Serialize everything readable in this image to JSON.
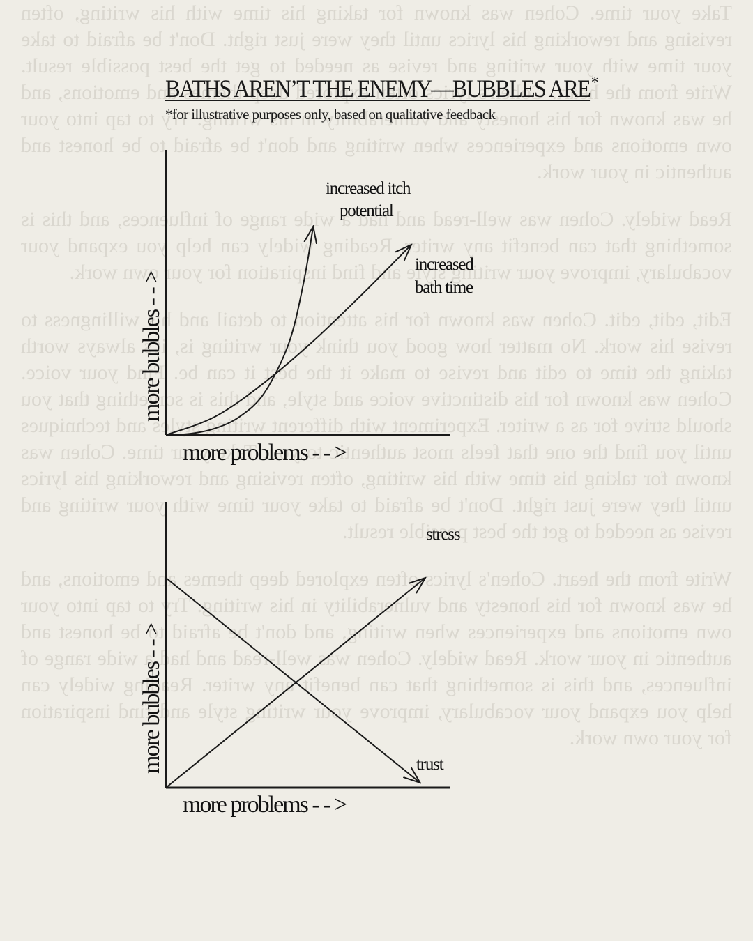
{
  "title": "BATHS AREN’T THE ENEMY—BUBBLES ARE",
  "title_mark": "*",
  "subtitle": "*for illustrative purposes only, based on qualitative feedback",
  "background_paragraphs": [
    "Take your time. Cohen was known for taking his time with his writing, often revising and reworking his lyrics until they were just right. Don't be afraid to take your time with your writing and revise as needed to get the best possible result. Write from the heart. Cohen's lyrics often explored deep themes and emotions, and he was known for his honesty and vulnerability in his writing. Try to tap into your own emotions and experiences when writing and don't be afraid to be honest and authentic in your work.",
    "Read widely. Cohen was well-read and had a wide range of influences, and this is something that can benefit any writer. Reading widely can help you expand your vocabulary, improve your writing style and find inspiration for your own work.",
    "Edit, edit, edit. Cohen was known for his attention to detail and his willingness to revise his work. No matter how good you think your writing is, it's always worth taking the time to edit and revise to make it the best it can be. Find your voice. Cohen was known for his distinctive voice and style, and this is something that you should strive for as a writer. Experiment with different writing styles and techniques until you find the one that feels most authentic to you. Take your time. Cohen was known for taking his time with his writing, often revising and reworking his lyrics until they were just right. Don't be afraid to take your time with your writing and revise as needed to get the best possible result.",
    "Write from the heart. Cohen's lyrics often explored deep themes and emotions, and he was known for his honesty and vulnerability in his writing. Try to tap into your own emotions and experiences when writing, and don't be afraid to be honest and authentic in your work. Read widely. Cohen was well-read and had a wide range of influences, and this is something that can benefit any writer. Reading widely can help you expand your vocabulary, improve your writing style and find inspiration for your own work."
  ],
  "colors": {
    "background": "#efede6",
    "ink": "#1a1a1a",
    "ghost_text": "#c9c6bd"
  },
  "chart_data": [
    {
      "type": "line",
      "title": "",
      "xlabel": "more problems - - >",
      "ylabel": "more bubbles - - >",
      "xlim": [
        0,
        10
      ],
      "ylim": [
        0,
        10
      ],
      "grid": false,
      "ticks": false,
      "series": [
        {
          "name": "increased itch potential",
          "x": [
            0,
            1,
            2,
            3,
            4,
            5,
            5.6,
            6.0
          ],
          "y": [
            0,
            0.05,
            0.25,
            0.7,
            1.6,
            3.5,
            5.8,
            8.0
          ]
        },
        {
          "name": "increased bath time",
          "x": [
            0,
            2,
            4,
            6,
            8,
            10
          ],
          "y": [
            0,
            0.7,
            2.0,
            3.6,
            5.4,
            7.3
          ]
        }
      ]
    },
    {
      "type": "line",
      "title": "",
      "xlabel": "more problems - - >",
      "ylabel": "more bubbles - - >",
      "xlim": [
        0,
        10
      ],
      "ylim": [
        0,
        10
      ],
      "grid": false,
      "ticks": false,
      "series": [
        {
          "name": "stress",
          "x": [
            0,
            10
          ],
          "y": [
            0,
            8.6
          ]
        },
        {
          "name": "trust",
          "x": [
            0,
            9.8
          ],
          "y": [
            8.6,
            0.2
          ]
        }
      ]
    }
  ]
}
